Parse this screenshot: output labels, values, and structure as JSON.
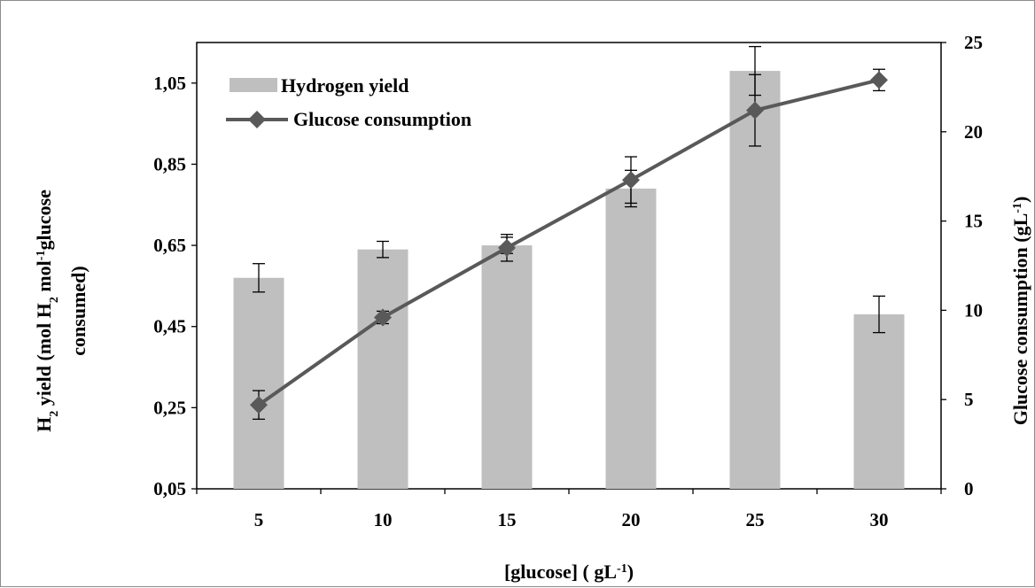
{
  "chart_data": {
    "type": "bar",
    "categories": [
      "5",
      "10",
      "15",
      "20",
      "25",
      "30"
    ],
    "series": [
      {
        "name": "Hydrogen yield",
        "type": "bar",
        "axis": "left",
        "values": [
          0.57,
          0.64,
          0.65,
          0.79,
          1.08,
          0.48
        ],
        "error": [
          0.035,
          0.02,
          0.02,
          0.045,
          0.06,
          0.045
        ],
        "color": "#bfbfbf"
      },
      {
        "name": "Glucose consumption",
        "type": "line",
        "axis": "right",
        "values": [
          4.7,
          9.6,
          13.5,
          17.3,
          21.2,
          22.9
        ],
        "error": [
          0.8,
          0.35,
          0.75,
          1.3,
          2.0,
          0.6
        ],
        "color": "#595959"
      }
    ],
    "xlabel_parts": [
      "[glucose] ( gL",
      "-1",
      ")"
    ],
    "ylabel_left": {
      "line1": [
        "H",
        "2",
        "  yield  (mol H",
        "2",
        " mol",
        "-1",
        "glucose"
      ],
      "line2": "consumed)"
    },
    "ylabel_right_parts": [
      "Glucose consumption (gL",
      "-1",
      ")"
    ],
    "ylim_left": [
      0.05,
      1.15
    ],
    "yticks_left": [
      "0,05",
      "0,25",
      "0,45",
      "0,65",
      "0,85",
      "1,05"
    ],
    "ylim_right": [
      0,
      25
    ],
    "yticks_right": [
      "0",
      "5",
      "10",
      "15",
      "20",
      "25"
    ],
    "grid": false,
    "legend_position": "top-left"
  }
}
